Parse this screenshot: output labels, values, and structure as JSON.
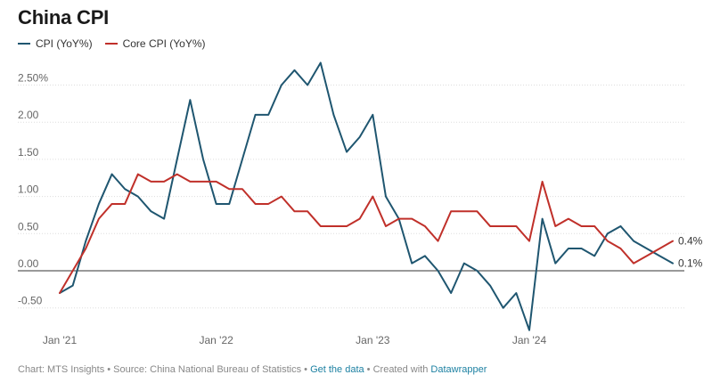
{
  "title": "China CPI",
  "footer": {
    "prefix": "Chart: MTS Insights • Source: China National Bureau of Statistics • ",
    "data_link": "Get the data",
    "middle": " • Created with ",
    "tool_link": "Datawrapper"
  },
  "colors": {
    "cpi": "#1f5670",
    "core": "#c0302a",
    "grid": "#dddddd",
    "zero": "#333333"
  },
  "chart_data": {
    "type": "line",
    "title": "China CPI",
    "x_tick_labels": [
      "Jan '21",
      "Jan '22",
      "Jan '23",
      "Jan '24"
    ],
    "x_tick_index": [
      0,
      12,
      24,
      36
    ],
    "y_tick_labels": [
      "2.50%",
      "2.00",
      "1.50",
      "1.00",
      "0.50",
      "0.00",
      "-0.50"
    ],
    "y_ticks": [
      2.5,
      2.0,
      1.5,
      1.0,
      0.5,
      0.0,
      -0.5
    ],
    "ylim": [
      -0.75,
      2.75
    ],
    "grid": true,
    "legend_position": "top-left",
    "series": [
      {
        "name": "CPI (YoY%)",
        "color": "#1f5670",
        "end_label": "0.1%",
        "values": [
          -0.3,
          -0.2,
          0.4,
          0.9,
          1.3,
          1.1,
          1.0,
          0.8,
          0.7,
          1.5,
          2.3,
          1.5,
          0.9,
          0.9,
          1.5,
          2.1,
          2.1,
          2.5,
          2.7,
          2.5,
          2.8,
          2.1,
          1.6,
          1.8,
          2.1,
          1.0,
          0.7,
          0.1,
          0.2,
          0.0,
          -0.3,
          0.1,
          0.0,
          -0.2,
          -0.5,
          -0.3,
          -0.8,
          0.7,
          0.1,
          0.3,
          0.3,
          0.2,
          0.5,
          0.6,
          0.4,
          0.3,
          0.2,
          0.1
        ]
      },
      {
        "name": "Core CPI (YoY%)",
        "color": "#c0302a",
        "end_label": "0.4%",
        "values": [
          -0.3,
          0.0,
          0.3,
          0.7,
          0.9,
          0.9,
          1.3,
          1.2,
          1.2,
          1.3,
          1.2,
          1.2,
          1.2,
          1.1,
          1.1,
          0.9,
          0.9,
          1.0,
          0.8,
          0.8,
          0.6,
          0.6,
          0.6,
          0.7,
          1.0,
          0.6,
          0.7,
          0.7,
          0.6,
          0.4,
          0.8,
          0.8,
          0.8,
          0.6,
          0.6,
          0.6,
          0.4,
          1.2,
          0.6,
          0.7,
          0.6,
          0.6,
          0.4,
          0.3,
          0.1,
          0.2,
          0.3,
          0.4
        ]
      }
    ]
  }
}
